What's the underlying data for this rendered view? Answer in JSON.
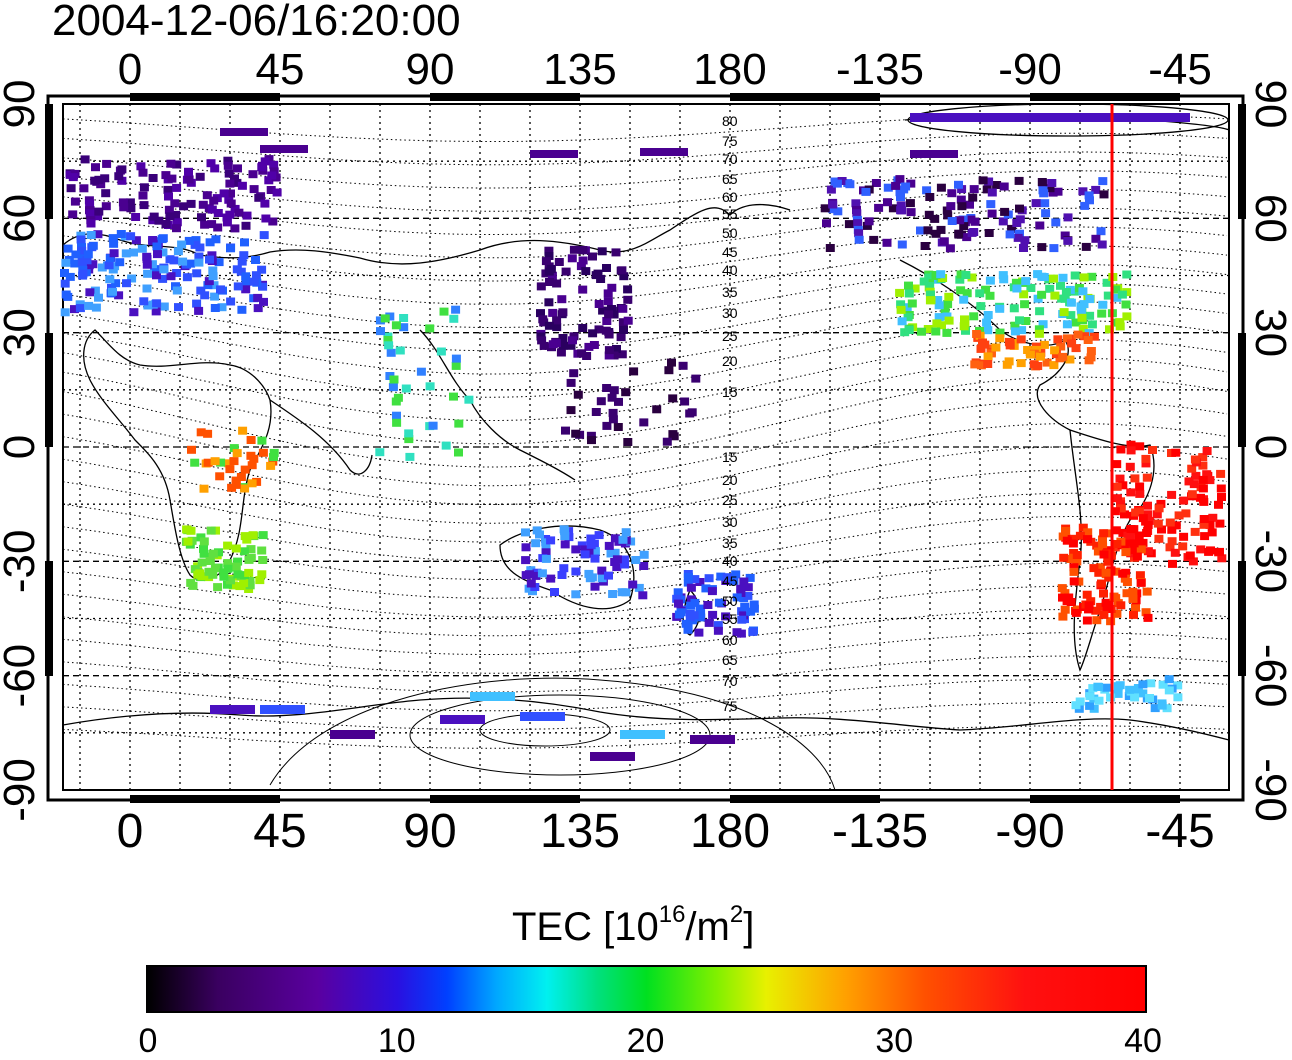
{
  "map_title": "2004-12-06/16:20:00",
  "top_ticks": [
    "0",
    "45",
    "90",
    "135",
    "180",
    "-135",
    "-90",
    "-45"
  ],
  "bottom_ticks": [
    "0",
    "45",
    "90",
    "135",
    "180",
    "-135",
    "-90",
    "-45"
  ],
  "left_ticks": [
    "90",
    "60",
    "30",
    "0",
    "-30",
    "-60",
    "-90"
  ],
  "right_ticks": [
    "90",
    "60",
    "30",
    "0",
    "-30",
    "-60",
    "-90"
  ],
  "contour_labels": [
    "80",
    "75",
    "70",
    "65",
    "60",
    "55",
    "50",
    "45",
    "40",
    "35",
    "30",
    "25",
    "20",
    "15",
    "15",
    "20",
    "25",
    "30",
    "35",
    "40",
    "45",
    "50",
    "55",
    "60",
    "65",
    "70",
    "75"
  ],
  "colorbar": {
    "label_main": "TEC  [10",
    "label_sup1": "16",
    "label_mid": "/m",
    "label_sup2": "2",
    "label_end": "]",
    "ticks": [
      "0",
      "10",
      "20",
      "30",
      "40"
    ],
    "range": [
      0,
      40
    ]
  },
  "terminator_longitude": -63,
  "colors": {
    "terminator": "#ff0000",
    "frame": "#000000"
  }
}
